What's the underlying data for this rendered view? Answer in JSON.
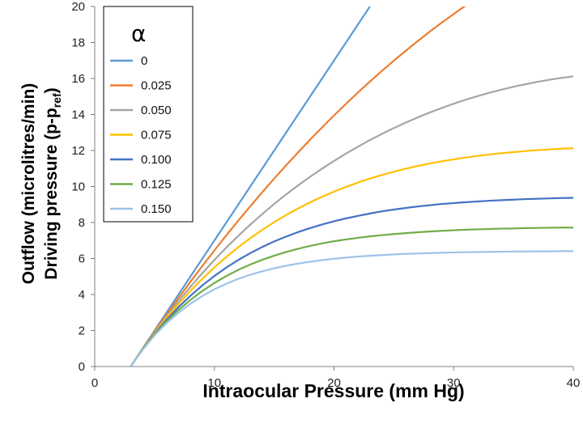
{
  "chart_data": {
    "type": "line",
    "xlabel": "Intraocular Pressure (mm Hg)",
    "ylabel_line1": "Outflow (microlitres/min)",
    "ylabel_line2_main": "Driving pressure (p-p",
    "ylabel_line2_sub": "ref",
    "ylabel_line2_end": ")",
    "xlim": [
      0,
      40
    ],
    "ylim": [
      0,
      20
    ],
    "x_ticks": [
      "0",
      "10",
      "20",
      "30",
      "40"
    ],
    "y_ticks": [
      "0",
      "2",
      "4",
      "6",
      "8",
      "10",
      "12",
      "14",
      "16",
      "18",
      "20"
    ],
    "grid": false,
    "legend_position": "top-left",
    "legend_title": "α",
    "x": [
      3,
      4,
      5,
      6,
      7,
      8,
      9,
      10,
      11,
      12,
      13,
      14,
      15,
      16,
      17,
      18,
      19,
      20,
      21,
      22,
      23,
      24,
      25,
      26,
      27,
      28,
      29,
      30,
      31,
      32,
      33,
      34,
      35,
      36,
      37,
      38,
      39,
      40
    ],
    "series": [
      {
        "name": "0",
        "color": "#5b9bd5",
        "values": [
          0,
          1,
          2,
          3,
          4,
          5,
          6,
          7,
          8,
          9,
          10,
          11,
          12,
          13,
          14,
          15,
          16,
          17,
          18,
          19,
          20,
          null,
          null,
          null,
          null,
          null,
          null,
          null,
          null,
          null,
          null,
          null,
          null,
          null,
          null,
          null,
          null,
          null
        ]
      },
      {
        "name": "0.025",
        "color": "#ed7d31",
        "values": [
          0,
          0.99,
          1.95,
          2.89,
          3.81,
          4.71,
          5.59,
          6.45,
          7.29,
          8.11,
          8.9,
          9.68,
          10.44,
          11.18,
          11.9,
          12.6,
          13.28,
          13.95,
          14.59,
          15.22,
          15.83,
          16.42,
          16.99,
          17.54,
          18.08,
          18.6,
          19.1,
          19.58,
          20.05,
          20.5,
          null,
          null,
          null,
          null,
          null,
          null,
          null,
          null
        ]
      },
      {
        "name": "0.050",
        "color": "#a5a5a5",
        "values": [
          0,
          0.98,
          1.9,
          2.79,
          3.63,
          4.43,
          5.19,
          5.92,
          6.61,
          7.26,
          7.88,
          8.47,
          9.03,
          9.56,
          10.06,
          10.54,
          10.99,
          11.42,
          11.83,
          12.21,
          12.58,
          12.92,
          13.25,
          13.55,
          13.84,
          14.11,
          14.36,
          14.6,
          14.82,
          15.02,
          15.21,
          15.38,
          15.54,
          15.68,
          15.81,
          15.93,
          16.03,
          16.12
        ]
      },
      {
        "name": "0.075",
        "color": "#ffc000",
        "values": [
          0,
          0.96,
          1.86,
          2.7,
          3.48,
          4.21,
          4.88,
          5.51,
          6.09,
          6.63,
          7.13,
          7.59,
          8.02,
          8.42,
          8.78,
          9.12,
          9.43,
          9.72,
          9.98,
          10.22,
          10.44,
          10.64,
          10.82,
          10.99,
          11.14,
          11.28,
          11.4,
          11.51,
          11.61,
          11.7,
          11.78,
          11.85,
          11.91,
          11.97,
          12.02,
          12.06,
          12.1,
          12.13
        ]
      },
      {
        "name": "0.100",
        "color": "#4472c4",
        "values": [
          0,
          0.95,
          1.81,
          2.59,
          3.3,
          3.93,
          4.51,
          5.03,
          5.5,
          5.92,
          6.3,
          6.64,
          6.95,
          7.22,
          7.47,
          7.69,
          7.89,
          8.07,
          8.23,
          8.37,
          8.5,
          8.62,
          8.72,
          8.81,
          8.89,
          8.96,
          9.03,
          9.08,
          9.13,
          9.17,
          9.21,
          9.24,
          9.27,
          9.3,
          9.32,
          9.34,
          9.36,
          9.37
        ]
      },
      {
        "name": "0.125",
        "color": "#70ad47",
        "values": [
          0,
          0.94,
          1.77,
          2.5,
          3.14,
          3.7,
          4.2,
          4.64,
          5.03,
          5.37,
          5.67,
          5.93,
          6.16,
          6.36,
          6.54,
          6.7,
          6.84,
          6.96,
          7.06,
          7.15,
          7.23,
          7.3,
          7.36,
          7.41,
          7.46,
          7.5,
          7.54,
          7.57,
          7.6,
          7.62,
          7.64,
          7.66,
          7.67,
          7.69,
          7.7,
          7.71,
          7.72,
          7.72
        ]
      },
      {
        "name": "0.150",
        "color": "#9dc3e6",
        "values": [
          0,
          0.93,
          1.73,
          2.41,
          2.99,
          3.49,
          3.92,
          4.29,
          4.6,
          4.87,
          5.1,
          5.29,
          5.46,
          5.6,
          5.72,
          5.82,
          5.91,
          5.99,
          6.05,
          6.11,
          6.15,
          6.19,
          6.23,
          6.26,
          6.28,
          6.3,
          6.32,
          6.34,
          6.35,
          6.36,
          6.37,
          6.38,
          6.39,
          6.39,
          6.4,
          6.4,
          6.41,
          6.41
        ]
      }
    ]
  }
}
